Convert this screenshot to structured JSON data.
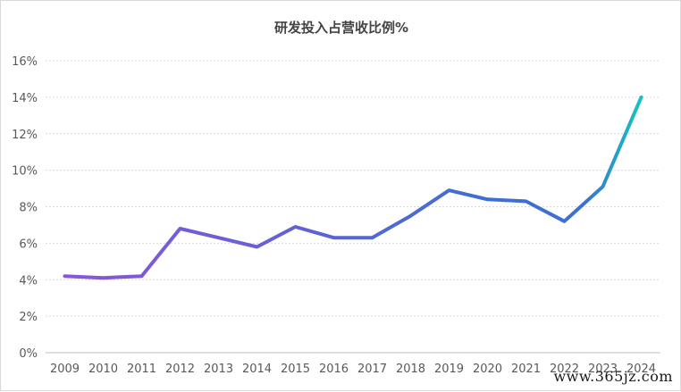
{
  "chart_data": {
    "type": "line",
    "title": "研发投入占营收比例%",
    "xlabel": "",
    "ylabel": "",
    "categories": [
      "2009",
      "2010",
      "2011",
      "2012",
      "2013",
      "2014",
      "2015",
      "2016",
      "2017",
      "2018",
      "2019",
      "2020",
      "2021",
      "2022",
      "2023",
      "2024"
    ],
    "series": [
      {
        "values": [
          4.2,
          4.1,
          4.2,
          6.8,
          6.3,
          5.8,
          6.9,
          6.3,
          6.3,
          7.5,
          8.9,
          8.4,
          8.3,
          7.2,
          9.1,
          14.0
        ]
      }
    ],
    "ylim": [
      0,
      16
    ],
    "yticks": [
      0,
      2,
      4,
      6,
      8,
      10,
      12,
      14,
      16
    ],
    "ytick_suffix": "%",
    "grid": "horizontal dotted",
    "legend": "none",
    "colors": {
      "line_start": "#8a55d6",
      "line_mid": "#3d6fd4",
      "line_end": "#14c4c0",
      "grid": "#d9d9d9",
      "axis": "#bfbfbf"
    }
  },
  "watermark": "www.365jz.com"
}
